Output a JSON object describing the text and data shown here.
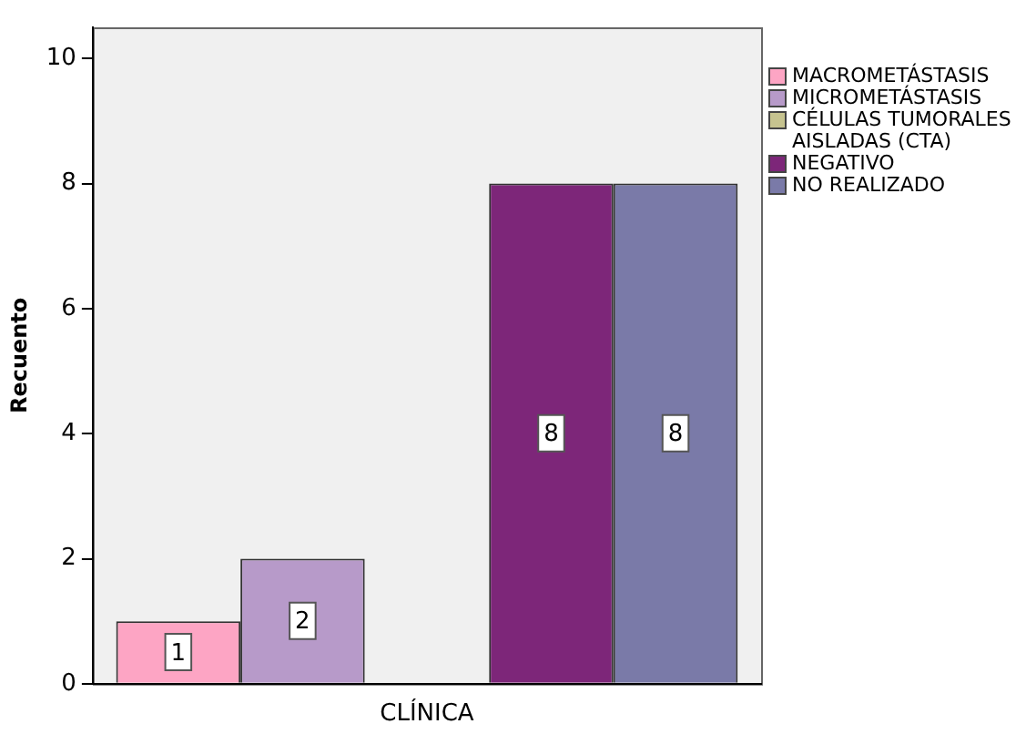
{
  "chart_data": {
    "type": "bar",
    "ylabel": "Recuento",
    "categories": [
      "CLÍNICA"
    ],
    "series": [
      {
        "name": "MACROMETÁSTASIS",
        "color": "#fda5c4",
        "values": [
          1
        ]
      },
      {
        "name": "MICROMETÁSTASIS",
        "color": "#b79ac9",
        "values": [
          2
        ]
      },
      {
        "name": "CÉLULAS TUMORALES AISLADAS (CTA)",
        "color": "#c6c38f",
        "values": [
          null
        ]
      },
      {
        "name": "NEGATIVO",
        "color": "#7d2679",
        "values": [
          8
        ]
      },
      {
        "name": "NO REALIZADO",
        "color": "#7a7aa8",
        "values": [
          8
        ]
      }
    ],
    "ylim": [
      0,
      10.5
    ],
    "yticks": [
      0,
      2,
      4,
      6,
      8,
      10
    ],
    "grid": false,
    "legend": "right",
    "data_labels": true
  }
}
